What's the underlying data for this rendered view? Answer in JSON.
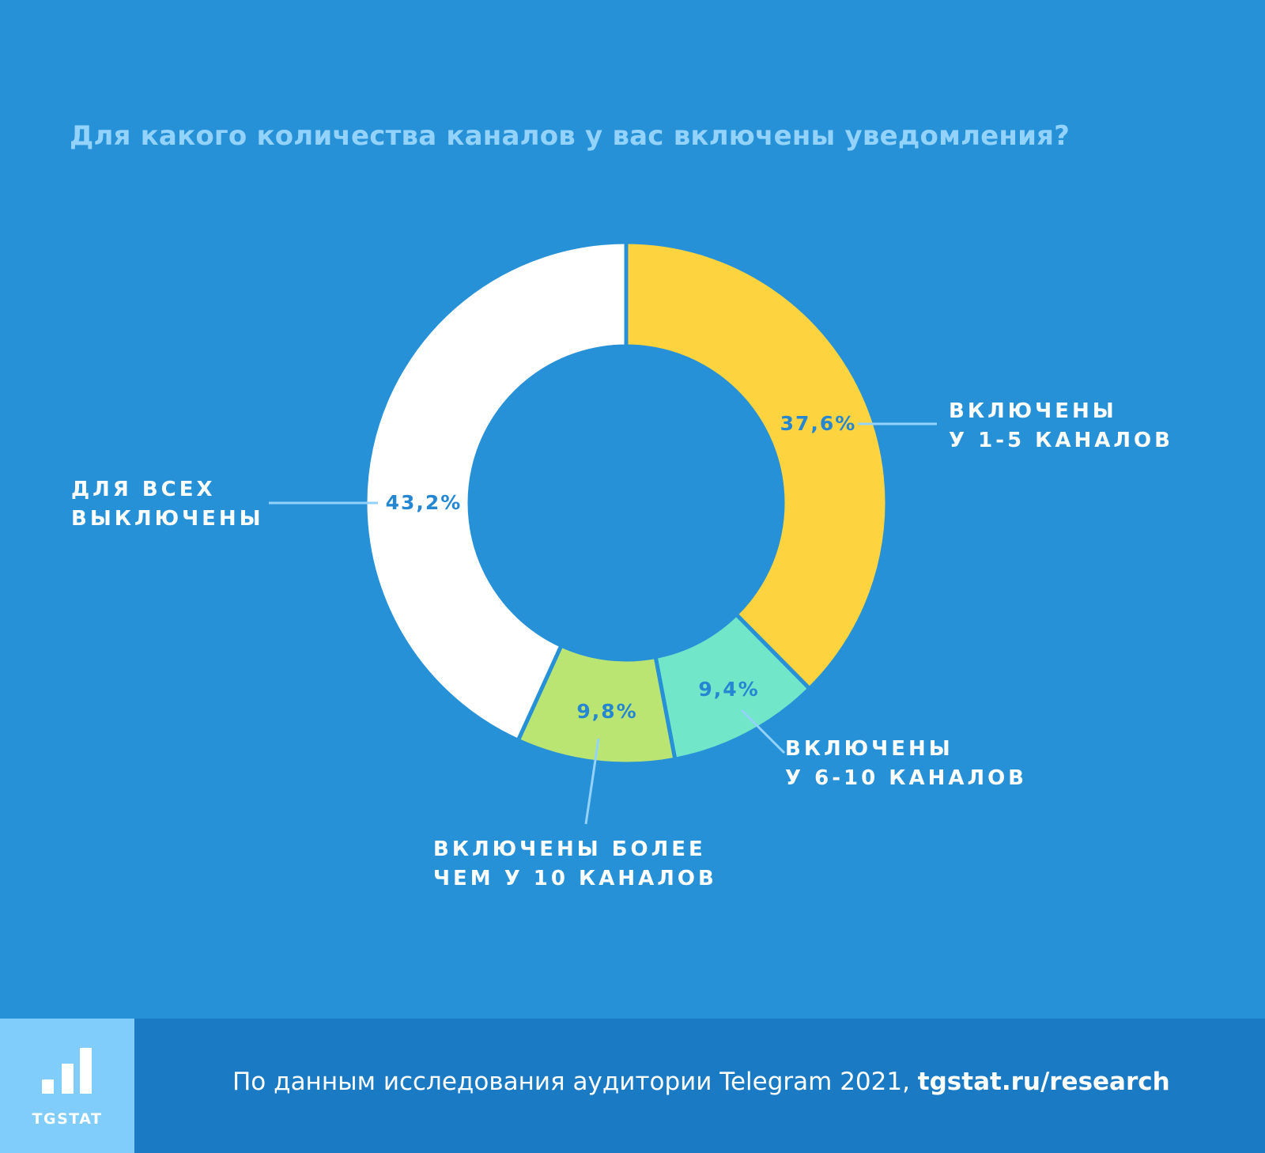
{
  "title": "Для какого количества каналов у вас включены уведомления?",
  "chart_data": {
    "type": "pie",
    "donut": true,
    "title": "Для какого количества каналов у вас включены уведомления?",
    "categories": [
      [
        "ВКЛЮЧЕНЫ",
        "У 1-5 КАНАЛОВ"
      ],
      [
        "ВКЛЮЧЕНЫ",
        "У 6-10 КАНАЛОВ"
      ],
      [
        "ВКЛЮЧЕНЫ БОЛЕЕ",
        "ЧЕМ У 10 КАНАЛОВ"
      ],
      [
        "ДЛЯ ВСЕХ",
        "ВЫКЛЮЧЕНЫ"
      ]
    ],
    "values": [
      37.6,
      9.4,
      9.8,
      43.2
    ],
    "value_labels": [
      "37,6%",
      "9,4%",
      "9,8%",
      "43,2%"
    ],
    "colors": [
      "#fdd33f",
      "#72e6c8",
      "#bbe573",
      "#ffffff"
    ],
    "legend": "none"
  },
  "footer": {
    "logo_text": "TGSTAT",
    "source_text": "По данным исследования аудитории Telegram 2021, ",
    "source_link": "tgstat.ru/research"
  }
}
